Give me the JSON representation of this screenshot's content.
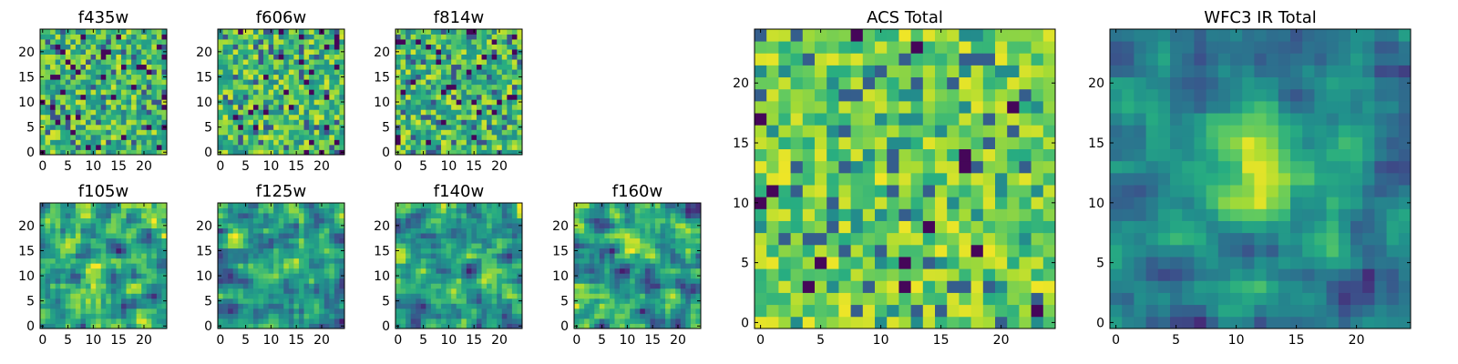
{
  "chart_data": {
    "type": "heatmap",
    "grid_size": [
      25,
      25
    ],
    "colormap": "viridis",
    "colors": {
      "low": "#440154",
      "mid_low": "#31688e",
      "mid": "#35b779",
      "high": "#fde725",
      "frame": "#000000"
    },
    "panels": [
      {
        "id": "f435w",
        "title": "f435w",
        "x_ticks": [
          "0",
          "5",
          "10",
          "15",
          "20"
        ],
        "y_ticks": [
          "0",
          "5",
          "10",
          "15",
          "20"
        ],
        "pattern": "noise",
        "seed": 11
      },
      {
        "id": "f606w",
        "title": "f606w",
        "x_ticks": [
          "0",
          "5",
          "10",
          "15",
          "20"
        ],
        "y_ticks": [
          "0",
          "5",
          "10",
          "15",
          "20"
        ],
        "pattern": "noise",
        "seed": 23
      },
      {
        "id": "f814w",
        "title": "f814w",
        "x_ticks": [
          "0",
          "5",
          "10",
          "15",
          "20"
        ],
        "y_ticks": [
          "0",
          "5",
          "10",
          "15",
          "20"
        ],
        "pattern": "noise",
        "seed": 37
      },
      {
        "id": "f105w",
        "title": "f105w",
        "x_ticks": [
          "0",
          "5",
          "10",
          "15",
          "20"
        ],
        "y_ticks": [
          "0",
          "5",
          "10",
          "15",
          "20"
        ],
        "pattern": "smooth",
        "seed": 41
      },
      {
        "id": "f125w",
        "title": "f125w",
        "x_ticks": [
          "0",
          "5",
          "10",
          "15",
          "20"
        ],
        "y_ticks": [
          "0",
          "5",
          "10",
          "15",
          "20"
        ],
        "pattern": "smooth",
        "seed": 53
      },
      {
        "id": "f140w",
        "title": "f140w",
        "x_ticks": [
          "0",
          "5",
          "10",
          "15",
          "20"
        ],
        "y_ticks": [
          "0",
          "5",
          "10",
          "15",
          "20"
        ],
        "pattern": "smooth",
        "seed": 67
      },
      {
        "id": "f160w",
        "title": "f160w",
        "x_ticks": [
          "0",
          "5",
          "10",
          "15",
          "20"
        ],
        "y_ticks": [
          "0",
          "5",
          "10",
          "15",
          "20"
        ],
        "pattern": "smooth",
        "seed": 79
      },
      {
        "id": "acs_total",
        "title": "ACS Total",
        "x_ticks": [
          "0",
          "5",
          "10",
          "15",
          "20"
        ],
        "y_ticks": [
          "0",
          "5",
          "10",
          "15",
          "20"
        ],
        "pattern": "noise_bright",
        "seed": 83
      },
      {
        "id": "wfc3_ir_total",
        "title": "WFC3 IR Total",
        "x_ticks": [
          "0",
          "5",
          "10",
          "15",
          "20"
        ],
        "y_ticks": [
          "0",
          "5",
          "10",
          "15",
          "20"
        ],
        "pattern": "central_source",
        "seed": 97,
        "peak_center": [
          12,
          12
        ]
      }
    ]
  }
}
